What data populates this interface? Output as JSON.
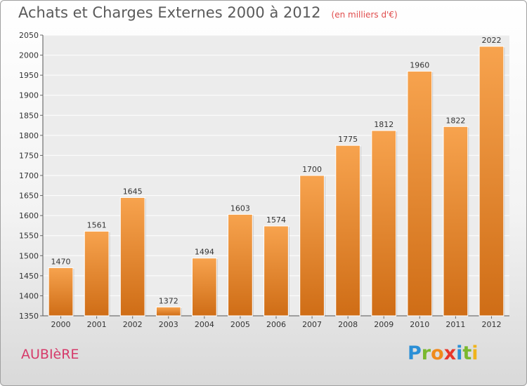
{
  "chart_data": {
    "type": "bar",
    "title": "Achats et Charges Externes 2000 à 2012",
    "subtitle": "(en milliers d'€)",
    "categories": [
      "2000",
      "2001",
      "2002",
      "2003",
      "2004",
      "2005",
      "2006",
      "2007",
      "2008",
      "2009",
      "2010",
      "2011",
      "2012"
    ],
    "values": [
      1470,
      1561,
      1645,
      1372,
      1494,
      1603,
      1574,
      1700,
      1775,
      1812,
      1960,
      1822,
      2022
    ],
    "ylim": [
      1350,
      2050
    ],
    "yticks": [
      1350,
      1400,
      1450,
      1500,
      1550,
      1600,
      1650,
      1700,
      1750,
      1800,
      1850,
      1900,
      1950,
      2000,
      2050
    ],
    "grid": true,
    "xlabel": "",
    "ylabel": "",
    "bar_color_top": "#f7a34e",
    "bar_color_bottom": "#cf6d16"
  },
  "footer": {
    "town": "AUBIèRE",
    "logo_letters": [
      "P",
      "r",
      "o",
      "x",
      "i",
      "t",
      "i"
    ],
    "logo_colors": [
      "#2b8fd6",
      "#7ab82e",
      "#f08a1c",
      "#e8362a",
      "#2b8fd6",
      "#7ab82e",
      "#f0b41c"
    ]
  }
}
